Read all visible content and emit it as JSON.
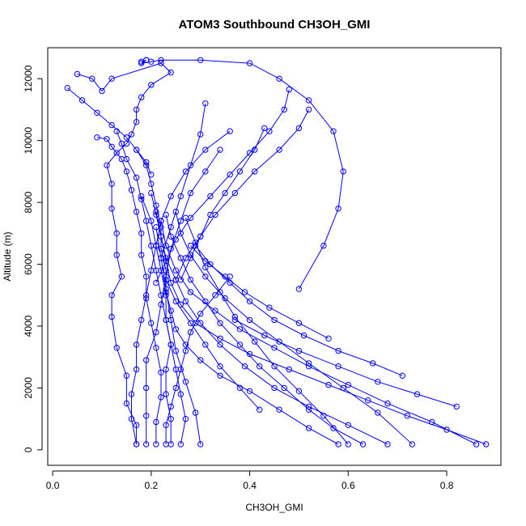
{
  "chart_data": {
    "type": "line",
    "title": "ATOM3 Southbound CH3OH_GMI",
    "xlabel": "CH3OH_GMI",
    "ylabel": "Altitude (m)",
    "xlim": [
      -0.01,
      0.91
    ],
    "ylim": [
      -500,
      13000
    ],
    "xticks": [
      0.0,
      0.2,
      0.4,
      0.6,
      0.8
    ],
    "xtick_labels": [
      "0.0",
      "0.2",
      "0.4",
      "0.6",
      "0.8"
    ],
    "yticks": [
      0,
      2000,
      4000,
      6000,
      8000,
      10000,
      12000
    ],
    "ytick_labels": [
      "0",
      "2000",
      "4000",
      "6000",
      "8000",
      "10000",
      "12000"
    ],
    "series_color": "#0000ff",
    "marker": "open-circle",
    "grid": false,
    "legend": "none",
    "series": [
      {
        "x": [
          0.17,
          0.17,
          0.15,
          0.15,
          0.13,
          0.12,
          0.12,
          0.14,
          0.13,
          0.13,
          0.12,
          0.12,
          0.11,
          0.13,
          0.15,
          0.16,
          0.17,
          0.17,
          0.18,
          0.2,
          0.24,
          0.22,
          0.12,
          0.1,
          0.08,
          0.05
        ],
        "y": [
          180,
          800,
          1500,
          2400,
          3300,
          4300,
          5000,
          5600,
          6300,
          7000,
          7800,
          8600,
          9200,
          9600,
          9900,
          10200,
          10600,
          11000,
          11400,
          11800,
          12200,
          12500,
          12000,
          11600,
          12000,
          12150
        ]
      },
      {
        "x": [
          0.21,
          0.21,
          0.22,
          0.22,
          0.21,
          0.2,
          0.19,
          0.19,
          0.18,
          0.18,
          0.17,
          0.16,
          0.15,
          0.14,
          0.12,
          0.11,
          0.09
        ],
        "y": [
          180,
          900,
          1700,
          2500,
          3300,
          4100,
          4900,
          5600,
          6300,
          7000,
          7700,
          8400,
          9000,
          9400,
          9800,
          10050,
          10100
        ]
      },
      {
        "x": [
          0.24,
          0.24,
          0.23,
          0.23,
          0.24,
          0.23,
          0.22,
          0.21,
          0.2,
          0.19,
          0.18,
          0.17,
          0.15,
          0.14,
          0.13
        ],
        "y": [
          180,
          1000,
          1800,
          2600,
          3400,
          4200,
          5000,
          5800,
          6600,
          7400,
          8100,
          8800,
          9400,
          9900,
          10300
        ]
      },
      {
        "x": [
          0.58,
          0.52,
          0.46,
          0.4,
          0.34,
          0.3,
          0.27,
          0.25,
          0.24,
          0.23,
          0.23,
          0.22,
          0.22,
          0.21,
          0.2,
          0.19,
          0.17
        ],
        "y": [
          180,
          700,
          1300,
          1900,
          2400,
          2900,
          3400,
          3900,
          4500,
          5100,
          5800,
          6500,
          7200,
          7900,
          8600,
          9200,
          9700
        ]
      },
      {
        "x": [
          0.88,
          0.8,
          0.72,
          0.64,
          0.56,
          0.48,
          0.4,
          0.34,
          0.29,
          0.26,
          0.24,
          0.23,
          0.22,
          0.21
        ],
        "y": [
          180,
          650,
          1100,
          1600,
          2100,
          2600,
          3100,
          3600,
          4100,
          4700,
          5400,
          6100,
          6900,
          7700
        ]
      },
      {
        "x": [
          0.86,
          0.77,
          0.68,
          0.6,
          0.52,
          0.45,
          0.38,
          0.33,
          0.28,
          0.25,
          0.23,
          0.22
        ],
        "y": [
          180,
          900,
          1500,
          2100,
          2700,
          3300,
          3900,
          4500,
          5100,
          5800,
          6600,
          7400
        ]
      },
      {
        "x": [
          0.68,
          0.6,
          0.52,
          0.45,
          0.39,
          0.34,
          0.3,
          0.27,
          0.25,
          0.23,
          0.22,
          0.21,
          0.2
        ],
        "y": [
          180,
          800,
          1400,
          2000,
          2700,
          3400,
          4100,
          4800,
          5500,
          6200,
          6900,
          7600,
          8300
        ]
      },
      {
        "x": [
          0.73,
          0.66,
          0.59,
          0.52,
          0.46,
          0.4,
          0.35,
          0.31,
          0.28,
          0.26,
          0.25
        ],
        "y": [
          180,
          1200,
          2000,
          2800,
          3500,
          4200,
          4900,
          5600,
          6300,
          7000,
          7700
        ]
      },
      {
        "x": [
          0.63,
          0.57,
          0.52,
          0.47,
          0.42,
          0.38,
          0.34,
          0.31,
          0.28,
          0.26,
          0.24,
          0.23
        ],
        "y": [
          180,
          700,
          1300,
          2000,
          2700,
          3400,
          4100,
          4800,
          5500,
          6200,
          6900,
          7600
        ]
      },
      {
        "x": [
          0.6,
          0.55,
          0.5,
          0.45,
          0.41,
          0.37,
          0.34,
          0.31,
          0.29,
          0.27
        ],
        "y": [
          180,
          1100,
          1900,
          2700,
          3500,
          4300,
          5100,
          5900,
          6700,
          7500
        ]
      },
      {
        "x": [
          0.71,
          0.65,
          0.58,
          0.51,
          0.45,
          0.4,
          0.36,
          0.32,
          0.29
        ],
        "y": [
          2400,
          2800,
          3200,
          3700,
          4200,
          4800,
          5400,
          6000,
          6600
        ]
      },
      {
        "x": [
          0.82,
          0.74,
          0.66,
          0.58,
          0.5,
          0.43,
          0.37
        ],
        "y": [
          1400,
          1800,
          2200,
          2700,
          3200,
          3700,
          4200
        ]
      },
      {
        "x": [
          0.18,
          0.19,
          0.19,
          0.18,
          0.2,
          0.22,
          0.3,
          0.4,
          0.46,
          0.52,
          0.57,
          0.59,
          0.58,
          0.55,
          0.5
        ],
        "y": [
          12550,
          12600,
          12600,
          12500,
          12550,
          12600,
          12600,
          12500,
          12000,
          11300,
          10300,
          9000,
          7800,
          6600,
          5200
        ]
      },
      {
        "x": [
          0.19,
          0.19,
          0.19,
          0.19,
          0.21,
          0.22,
          0.23,
          0.24,
          0.26,
          0.28,
          0.31,
          0.34
        ],
        "y": [
          180,
          1100,
          2000,
          2900,
          3800,
          4700,
          5600,
          6500,
          7400,
          8300,
          9000,
          9700
        ]
      },
      {
        "x": [
          0.26,
          0.27,
          0.26,
          0.25,
          0.24,
          0.23,
          0.23,
          0.22,
          0.21,
          0.2,
          0.18
        ],
        "y": [
          180,
          1000,
          1800,
          2600,
          3400,
          4200,
          5000,
          5800,
          6600,
          7400,
          8200
        ]
      },
      {
        "x": [
          0.17,
          0.16,
          0.16,
          0.17,
          0.17,
          0.18,
          0.19,
          0.2,
          0.21,
          0.22,
          0.24,
          0.27,
          0.31,
          0.36
        ],
        "y": [
          180,
          1000,
          1800,
          2600,
          3400,
          4200,
          5000,
          5800,
          6600,
          7400,
          8200,
          9000,
          9700,
          10300
        ]
      },
      {
        "x": [
          0.48,
          0.47,
          0.44,
          0.4,
          0.36,
          0.32,
          0.28,
          0.25,
          0.23,
          0.21
        ],
        "y": [
          11650,
          11000,
          10300,
          9600,
          8900,
          8200,
          7500,
          6800,
          6100,
          5400
        ]
      },
      {
        "x": [
          0.52,
          0.5,
          0.46,
          0.41,
          0.37,
          0.33,
          0.3,
          0.27,
          0.25
        ],
        "y": [
          11000,
          10400,
          9700,
          9000,
          8300,
          7600,
          6900,
          6200,
          5500
        ]
      },
      {
        "x": [
          0.43,
          0.41,
          0.38,
          0.35,
          0.32,
          0.3,
          0.28,
          0.26
        ],
        "y": [
          10400,
          9700,
          9000,
          8300,
          7600,
          6900,
          6200,
          5500
        ]
      },
      {
        "x": [
          0.31,
          0.3,
          0.28,
          0.26,
          0.24,
          0.22
        ],
        "y": [
          11200,
          10200,
          9200,
          8200,
          7200,
          6200
        ]
      },
      {
        "x": [
          0.03,
          0.06,
          0.09,
          0.12,
          0.15,
          0.17,
          0.19,
          0.2
        ],
        "y": [
          11700,
          11300,
          10900,
          10500,
          10100,
          9700,
          9300,
          8900
        ]
      },
      {
        "x": [
          0.23,
          0.23,
          0.24,
          0.25,
          0.26,
          0.27,
          0.28,
          0.3,
          0.33,
          0.36
        ],
        "y": [
          180,
          800,
          1400,
          2000,
          2600,
          3200,
          3800,
          4400,
          5000,
          5600
        ]
      },
      {
        "x": [
          0.3,
          0.29,
          0.27,
          0.25,
          0.24,
          0.23,
          0.22,
          0.21
        ],
        "y": [
          180,
          1200,
          2200,
          3200,
          4200,
          5200,
          6200,
          7200
        ]
      },
      {
        "x": [
          0.56,
          0.5,
          0.44,
          0.39,
          0.35,
          0.31,
          0.28
        ],
        "y": [
          3600,
          4100,
          4600,
          5100,
          5600,
          6100,
          6600
        ]
      },
      {
        "x": [
          0.42,
          0.38,
          0.34,
          0.31,
          0.28,
          0.25,
          0.23
        ],
        "y": [
          1300,
          2000,
          2700,
          3400,
          4100,
          4800,
          5500
        ]
      }
    ]
  }
}
